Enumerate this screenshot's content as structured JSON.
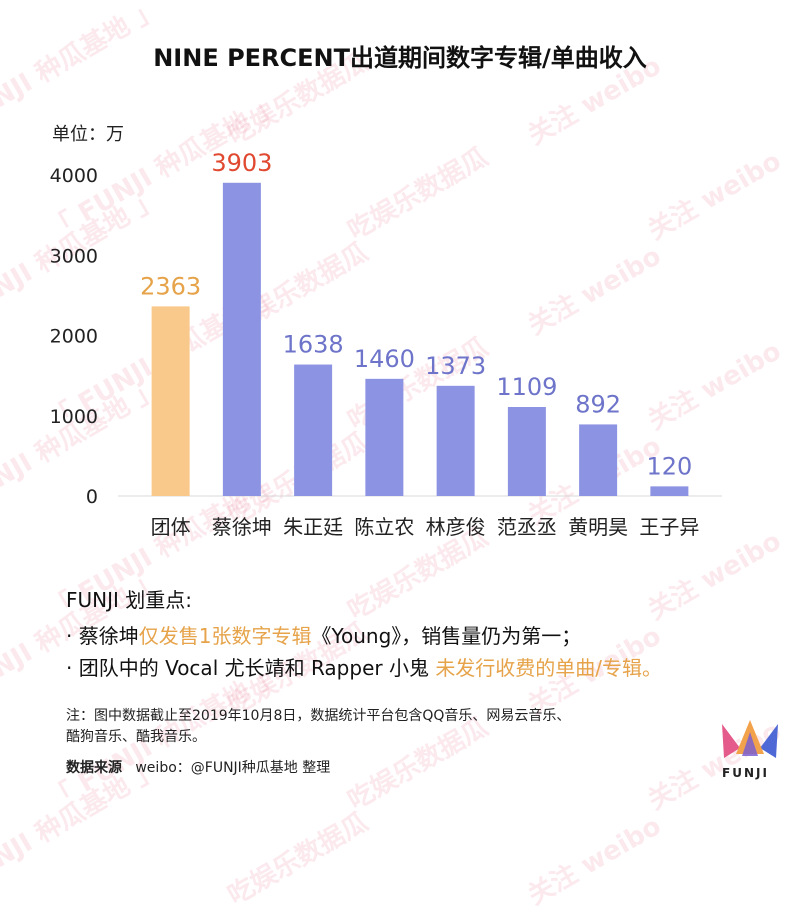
{
  "title": "NINE PERCENT出道期间数字专辑/单曲收入",
  "unit_label": "单位：万",
  "watermark_texts": [
    "「 FUNJI 种瓜基地 」",
    "吃娱乐数据瓜",
    "关注 weibo"
  ],
  "chart_data": {
    "type": "bar",
    "title": "NINE PERCENT出道期间数字专辑/单曲收入",
    "categories": [
      "团体",
      "蔡徐坤",
      "朱正廷",
      "陈立农",
      "林彦俊",
      "范丞丞",
      "黄明昊",
      "王子异"
    ],
    "values": [
      2363,
      3903,
      1638,
      1460,
      1373,
      1109,
      892,
      120
    ],
    "bar_colors": [
      "#f9c98b",
      "#8c93e2",
      "#8c93e2",
      "#8c93e2",
      "#8c93e2",
      "#8c93e2",
      "#8c93e2",
      "#8c93e2"
    ],
    "label_colors": [
      "#e6a34a",
      "#e0482f",
      "#6d74c9",
      "#6d74c9",
      "#6d74c9",
      "#6d74c9",
      "#6d74c9",
      "#6d74c9"
    ],
    "ylim": [
      0,
      4000
    ],
    "yticks": [
      0,
      1000,
      2000,
      3000,
      4000
    ],
    "xlabel": "",
    "ylabel": "单位：万",
    "grid": false,
    "legend": "none"
  },
  "notes": {
    "heading": "FUNJI 划重点:",
    "bullet1": {
      "prefix": "· 蔡徐坤",
      "highlight": "仅发售1张数字专辑",
      "suffix": "《Young》，销售量仍为第一；"
    },
    "bullet2": {
      "prefix": "· 团队中的 Vocal 尤长靖和 Rapper 小鬼 ",
      "highlight": "未发行收费的单曲/专辑。"
    }
  },
  "footnote": {
    "line1": "注：图中数据截止至2019年10月8日，数据统计平台包含QQ音乐、网易云音乐、",
    "line2": "酷狗音乐、酷我音乐。"
  },
  "source": {
    "label": "数据来源",
    "text": "weibo：@FUNJI种瓜基地",
    "suffix": " 整理"
  },
  "logo_text": "FUNJI",
  "colors": {
    "group_bar": "#f9c98b",
    "member_bar": "#8c93e2",
    "highlight": "#e6a34a",
    "top_value": "#e0482f",
    "member_value": "#6d74c9"
  }
}
